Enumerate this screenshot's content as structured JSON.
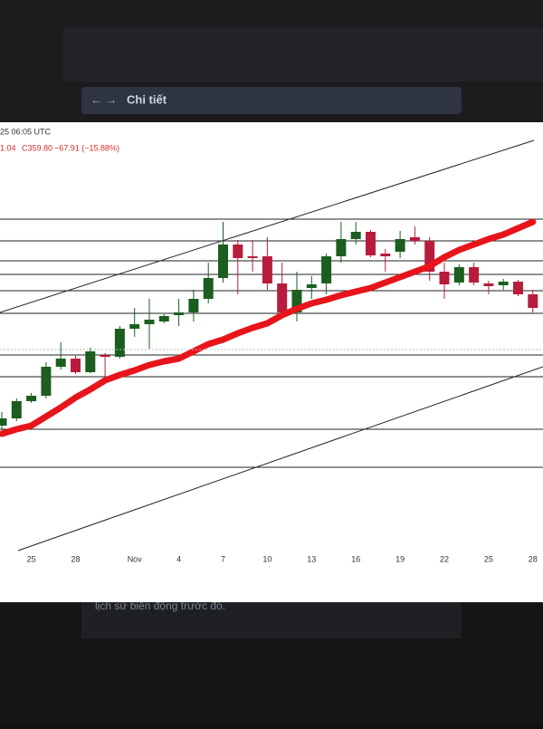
{
  "header": {
    "title": "Chi tiết"
  },
  "footer": {
    "text": "lịch sử biến động trước đó."
  },
  "chart_data": {
    "type": "candlestick",
    "time_label": "25 06:05 UTC",
    "ohlc_labels": [
      "1.04",
      "C359.80",
      "−67.91 (−15.88%)"
    ],
    "categories": [
      null,
      null,
      "25",
      null,
      null,
      "28",
      null,
      null,
      null,
      "Nov",
      null,
      null,
      "4",
      null,
      null,
      "7",
      null,
      null,
      "10",
      null,
      null,
      "13",
      null,
      null,
      "16",
      null,
      null,
      "19",
      null,
      null,
      "22",
      null,
      null,
      "25",
      null,
      null,
      "28"
    ],
    "open": [
      235,
      239,
      248.5,
      251.5,
      267.5,
      272,
      264.5,
      274,
      273,
      288.5,
      291,
      292.5,
      296,
      297.5,
      305,
      316.5,
      335,
      328.5,
      328.5,
      313.5,
      297.5,
      311,
      313.5,
      328.5,
      338,
      342,
      330,
      331,
      339,
      337,
      320,
      314,
      322.5,
      313.5,
      312.5,
      314.5,
      307.5
    ],
    "high": [
      242.5,
      250,
      253,
      270,
      281,
      273.5,
      278,
      275,
      290,
      300,
      305,
      296.5,
      305,
      310,
      325,
      347.5,
      337.5,
      337.5,
      339,
      325,
      320,
      317.5,
      330,
      347.5,
      347.5,
      343,
      332.5,
      342.5,
      345,
      339,
      325,
      324,
      325,
      315,
      316,
      315.5,
      310
    ],
    "low": [
      232.5,
      237.5,
      247.5,
      250,
      266,
      263.5,
      264,
      260,
      272,
      284,
      277.5,
      291.5,
      290,
      292.5,
      302.5,
      314,
      307.5,
      320,
      310,
      295,
      292.5,
      305,
      307.5,
      325,
      335,
      328,
      320,
      327.5,
      335,
      315,
      305,
      312.5,
      312.5,
      307.5,
      310,
      306.5,
      297.5
    ],
    "close": [
      239,
      248.5,
      251.5,
      267.5,
      272,
      264.5,
      276,
      273,
      288.5,
      291,
      293.5,
      295.5,
      297.5,
      305,
      316.5,
      335,
      327.5,
      327.5,
      313.5,
      297.5,
      310,
      313,
      328.5,
      338,
      342,
      329,
      328.5,
      338,
      337,
      320,
      313,
      322.5,
      314,
      312,
      314.5,
      307.5,
      300
    ],
    "ma": [
      230.5,
      233,
      235,
      240,
      245,
      250.5,
      255,
      260,
      263,
      265.5,
      268.5,
      270.5,
      272,
      276,
      280,
      282.5,
      286,
      289,
      291.5,
      296,
      299.5,
      302.5,
      304.5,
      307,
      309,
      311,
      314,
      317,
      320,
      323,
      328,
      332,
      335,
      338,
      340.5,
      344,
      347.5
    ],
    "levels": [
      349,
      337,
      326,
      318.5,
      309.5,
      297,
      274,
      262,
      233,
      212
    ],
    "up_color": "#1b5e20",
    "down_color": "#b71c3c",
    "ma_color": "#e8141b",
    "ylim": [
      140,
      400
    ]
  }
}
